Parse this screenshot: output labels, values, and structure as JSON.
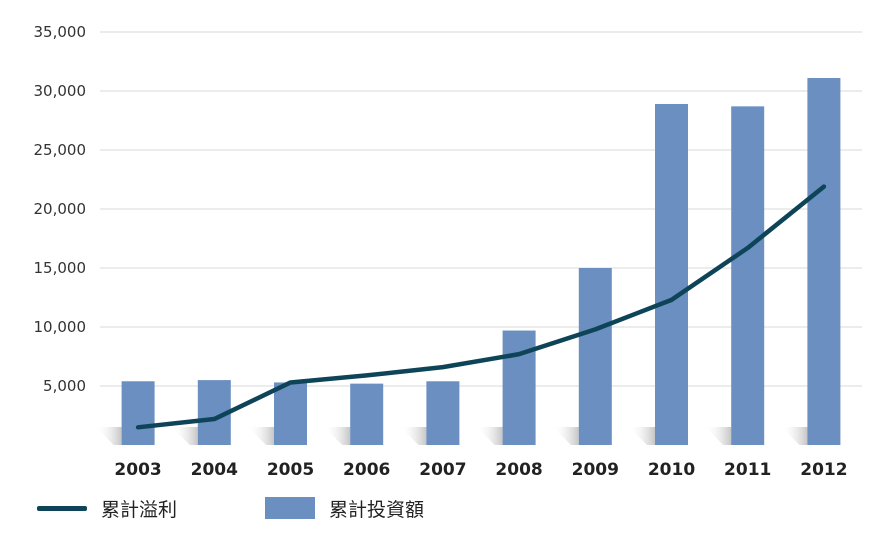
{
  "chart_data": {
    "type": "bar",
    "categories": [
      "2003",
      "2004",
      "2005",
      "2006",
      "2007",
      "2008",
      "2009",
      "2010",
      "2011",
      "2012"
    ],
    "series": [
      {
        "name": "累計投資額",
        "type": "bar",
        "color": "#6b8fc0",
        "values": [
          5400,
          5500,
          5300,
          5200,
          5400,
          9700,
          15000,
          28900,
          28700,
          31100
        ]
      },
      {
        "name": "累計溢利",
        "type": "line",
        "color": "#0e4458",
        "values": [
          1500,
          2200,
          5300,
          5900,
          6600,
          7700,
          9800,
          12300,
          16700,
          21900
        ]
      }
    ],
    "ylim": [
      0,
      35000
    ],
    "yticks": [
      "5,000",
      "10,000",
      "15,000",
      "20,000",
      "25,000",
      "30,000",
      "35,000"
    ],
    "ytick_values": [
      5000,
      10000,
      15000,
      20000,
      25000,
      30000,
      35000
    ],
    "grid": true,
    "legend_position": "bottom-left"
  },
  "legend": {
    "line_label": "累計溢利",
    "bar_label": "累計投資額",
    "line_color": "#0e4458",
    "bar_color": "#6b8fc0"
  }
}
